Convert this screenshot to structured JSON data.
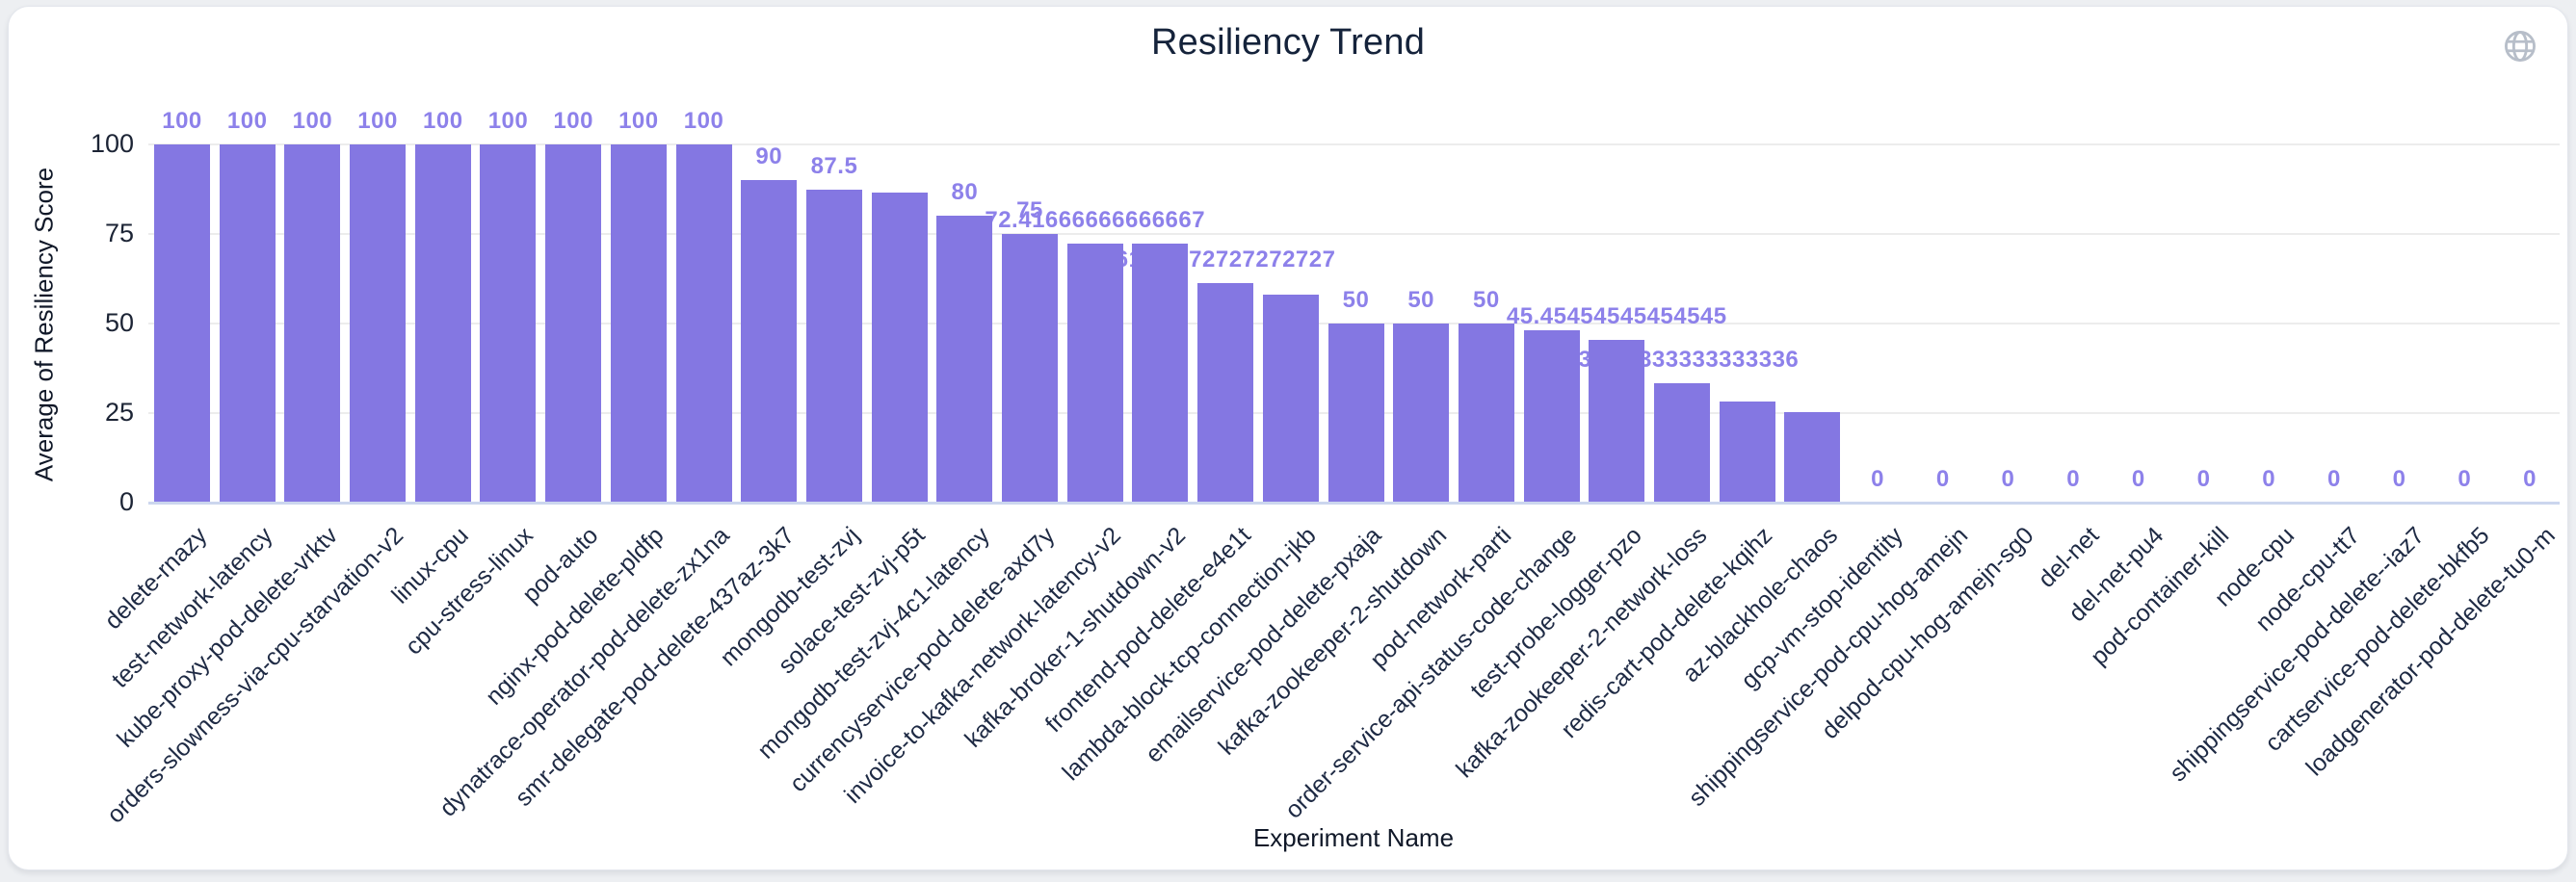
{
  "header": {
    "title": "Resiliency Trend",
    "globe_icon": "globe-icon"
  },
  "chart_data": {
    "type": "bar",
    "title": "Resiliency Trend",
    "xlabel": "Experiment Name",
    "ylabel": "Average of Resiliency Score",
    "ylim": [
      0,
      100
    ],
    "yticks": [
      0,
      25,
      50,
      75,
      100
    ],
    "grid": true,
    "legend": false,
    "bar_color": "#8477e2",
    "bar_label_color": "#8d81ea",
    "categories": [
      "delete-rnazy",
      "test-network-latency",
      "kube-proxy-pod-delete-vrktv",
      "orders-slowness-via-cpu-starvation-v2",
      "linux-cpu",
      "cpu-stress-linux",
      "pod-auto",
      "nginx-pod-delete-pldfp",
      "dynatrace-operator-pod-delete-zx1na",
      "smr-delegate-pod-delete-437az-3k7",
      "mongodb-test-zvj",
      "solace-test-zvj-p5t",
      "mongodb-test-zvj-4c1-latency",
      "currencyservice-pod-delete-axd7y",
      "invoice-to-kafka-network-latency-v2",
      "kafka-broker-1-shutdown-v2",
      "frontend-pod-delete-e4e1t",
      "lambda-block-tcp-connection-jkb",
      "emailservice-pod-delete-pxaja",
      "kafka-zookeeper-2-shutdown",
      "pod-network-parti",
      "order-service-api-status-code-change",
      "test-probe-logger-pzo",
      "kafka-zookeeper-2-network-loss",
      "redis-cart-pod-delete-kqihz",
      "az-blackhole-chaos",
      "gcp-vm-stop-identity",
      "shippingservice-pod-cpu-hog-amejn",
      "delpod-cpu-hog-amejn-sg0",
      "del-net",
      "del-net-pu4",
      "pod-container-kill",
      "node-cpu",
      "node-cpu-tt7",
      "shippingservice-pod-delete--iaz7",
      "cartservice-pod-delete-bkfb5",
      "loadgenerator-pod-delete-tu0-m"
    ],
    "values": [
      100,
      100,
      100,
      100,
      100,
      100,
      100,
      100,
      100,
      90,
      87.5,
      86.5,
      80,
      75,
      72.41666666666667,
      72.3,
      61.27272727272727,
      58.1,
      50,
      50,
      50,
      48.1,
      45.45454545454545,
      33.333333333333336,
      28.1,
      25.4,
      0,
      0,
      0,
      0,
      0,
      0,
      0,
      0,
      0,
      0,
      0
    ],
    "bar_labels": [
      "100",
      "100",
      "100",
      "100",
      "100",
      "100",
      "100",
      "100",
      "100",
      "90",
      "87.5",
      "",
      "80",
      "75",
      "72.41666666666667",
      "",
      "61.27272727272727",
      "",
      "50",
      "50",
      "50",
      "",
      "45.45454545454545",
      "33.333333333333336",
      "",
      "",
      "0",
      "0",
      "0",
      "0",
      "0",
      "0",
      "0",
      "0",
      "0",
      "0",
      "0"
    ]
  }
}
